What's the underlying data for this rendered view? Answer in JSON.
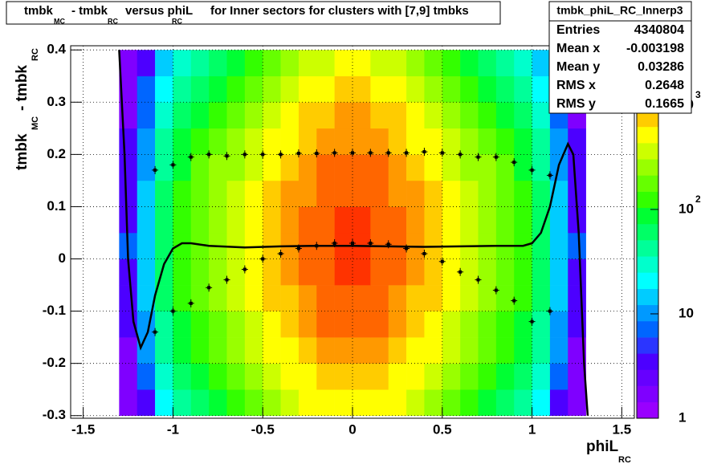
{
  "chart_data": {
    "type": "heatmap",
    "title": [
      "tmbk",
      "MC",
      "- tmbk",
      "RC",
      "versus phiL",
      "RC",
      "for Inner sectors for clusters with [7,9] tmbks"
    ],
    "x_label": [
      "phiL",
      "RC"
    ],
    "y_label": [
      "tmbk",
      "MC",
      "- tmbk",
      "RC"
    ],
    "xlim": [
      -1.57,
      1.57
    ],
    "ylim": [
      -0.305,
      0.408
    ],
    "xticks": [
      -1.5,
      -1,
      -0.5,
      0,
      0.5,
      1,
      1.5
    ],
    "yticks": [
      -0.3,
      -0.2,
      -0.1,
      0,
      0.1,
      0.2,
      0.3,
      0.4
    ],
    "grid": true,
    "zlog": true,
    "zlim": [
      1,
      3700
    ],
    "zticks": [
      {
        "value": 1,
        "label": "1"
      },
      {
        "value": 10,
        "label": "10"
      },
      {
        "value": 100,
        "label": "10",
        "exponent": "2"
      },
      {
        "value": 1000,
        "label": "10",
        "exponent": "3"
      }
    ],
    "palette": [
      "#9900ff",
      "#7f00ff",
      "#6600ff",
      "#4c00ff",
      "#2b35ff",
      "#0066ff",
      "#0099ff",
      "#00ccff",
      "#00ffff",
      "#00ffcc",
      "#00ff99",
      "#00ff66",
      "#00ff33",
      "#33ff00",
      "#66ff00",
      "#99ff00",
      "#ccff00",
      "#ffff00",
      "#ffcc00",
      "#ff9900",
      "#ff6600",
      "#ff3300",
      "#ff0000"
    ],
    "xbins": [
      -1.3,
      -1.2,
      -1.1,
      -1.0,
      -0.9,
      -0.8,
      -0.7,
      -0.6,
      -0.5,
      -0.4,
      -0.3,
      -0.2,
      -0.1,
      0,
      0.1,
      0.2,
      0.3,
      0.4,
      0.5,
      0.6,
      0.7,
      0.8,
      0.9,
      1.0,
      1.1,
      1.2,
      1.3
    ],
    "ybins": [
      -0.3,
      -0.25,
      -0.2,
      -0.15,
      -0.1,
      -0.05,
      0,
      0.05,
      0.1,
      0.15,
      0.2,
      0.25,
      0.3,
      0.35,
      0.4
    ],
    "z": [
      [
        2,
        4,
        20,
        38,
        62,
        88,
        124,
        174,
        246,
        310,
        438,
        550,
        618,
        618,
        550,
        438,
        310,
        246,
        174,
        124,
        88,
        62,
        38,
        20,
        4,
        2
      ],
      [
        2,
        6,
        28,
        56,
        88,
        124,
        174,
        246,
        348,
        438,
        618,
        778,
        874,
        874,
        778,
        618,
        438,
        348,
        246,
        174,
        124,
        88,
        56,
        28,
        6,
        2
      ],
      [
        2,
        10,
        38,
        74,
        118,
        166,
        234,
        332,
        468,
        590,
        834,
        1050,
        1178,
        1178,
        1050,
        834,
        590,
        468,
        332,
        234,
        166,
        118,
        74,
        38,
        10,
        2
      ],
      [
        4,
        12,
        46,
        94,
        148,
        210,
        296,
        418,
        590,
        744,
        1050,
        1322,
        1482,
        1482,
        1322,
        1050,
        744,
        590,
        418,
        296,
        210,
        148,
        94,
        46,
        12,
        4
      ],
      [
        4,
        14,
        56,
        110,
        174,
        246,
        348,
        490,
        694,
        874,
        1234,
        1552,
        1742,
        1742,
        1552,
        1234,
        874,
        694,
        490,
        348,
        246,
        174,
        110,
        56,
        14,
        4
      ],
      [
        4,
        16,
        60,
        120,
        190,
        270,
        382,
        538,
        760,
        958,
        1352,
        1702,
        1910,
        1910,
        1702,
        1352,
        958,
        760,
        538,
        382,
        270,
        190,
        120,
        60,
        16,
        4
      ],
      [
        6,
        16,
        64,
        126,
        200,
        282,
        400,
        564,
        796,
        1002,
        1416,
        1782,
        2000,
        2000,
        1782,
        1416,
        1002,
        796,
        564,
        400,
        282,
        200,
        126,
        64,
        16,
        6
      ],
      [
        4,
        16,
        62,
        124,
        196,
        276,
        390,
        550,
        778,
        980,
        1384,
        1742,
        1954,
        1954,
        1742,
        1384,
        980,
        778,
        550,
        390,
        276,
        196,
        124,
        62,
        16,
        4
      ],
      [
        4,
        14,
        56,
        112,
        178,
        252,
        356,
        502,
        710,
        894,
        1262,
        1588,
        1782,
        1782,
        1588,
        1262,
        894,
        710,
        502,
        356,
        252,
        178,
        112,
        56,
        14,
        4
      ],
      [
        4,
        12,
        48,
        96,
        152,
        214,
        302,
        428,
        604,
        760,
        1074,
        1352,
        1518,
        1518,
        1352,
        1074,
        760,
        604,
        428,
        302,
        214,
        152,
        96,
        48,
        12,
        4
      ],
      [
        4,
        10,
        38,
        78,
        124,
        174,
        246,
        348,
        490,
        618,
        874,
        1100,
        1234,
        1234,
        1100,
        874,
        618,
        490,
        348,
        246,
        174,
        124,
        78,
        38,
        10,
        4
      ],
      [
        2,
        8,
        30,
        60,
        94,
        132,
        186,
        264,
        372,
        468,
        662,
        834,
        936,
        936,
        834,
        662,
        468,
        372,
        264,
        186,
        132,
        94,
        60,
        30,
        8,
        2
      ],
      [
        2,
        6,
        20,
        42,
        66,
        94,
        132,
        186,
        264,
        332,
        468,
        590,
        662,
        662,
        590,
        468,
        332,
        264,
        186,
        132,
        94,
        66,
        42,
        20,
        6,
        2
      ],
      [
        2,
        4,
        14,
        28,
        44,
        64,
        90,
        126,
        178,
        224,
        316,
        400,
        448,
        448,
        400,
        316,
        224,
        178,
        126,
        90,
        64,
        44,
        28,
        14,
        4,
        2
      ]
    ],
    "profile_upper": {
      "x": [
        -1.1,
        -1.0,
        -0.9,
        -0.8,
        -0.7,
        -0.6,
        -0.5,
        -0.4,
        -0.3,
        -0.2,
        -0.1,
        0,
        0.1,
        0.2,
        0.3,
        0.4,
        0.5,
        0.6,
        0.7,
        0.8,
        0.9,
        1.0,
        1.1
      ],
      "y": [
        0.17,
        0.18,
        0.195,
        0.2,
        0.197,
        0.2,
        0.2,
        0.2,
        0.202,
        0.202,
        0.203,
        0.203,
        0.203,
        0.203,
        0.203,
        0.205,
        0.203,
        0.2,
        0.195,
        0.195,
        0.185,
        0.17,
        0.16
      ]
    },
    "profile_lower": {
      "x": [
        -1.1,
        -1.0,
        -0.9,
        -0.8,
        -0.7,
        -0.6,
        -0.5,
        -0.4,
        -0.3,
        -0.2,
        -0.1,
        0,
        0.1,
        0.2,
        0.3,
        0.4,
        0.5,
        0.6,
        0.7,
        0.8,
        0.9,
        1.0,
        1.1
      ],
      "y": [
        -0.14,
        -0.1,
        -0.085,
        -0.055,
        -0.04,
        -0.02,
        0,
        0.01,
        0.02,
        0.025,
        0.03,
        0.03,
        0.03,
        0.028,
        0.02,
        0.01,
        -0.005,
        -0.025,
        -0.04,
        -0.06,
        -0.08,
        -0.12,
        -0.1
      ]
    },
    "fit": {
      "x": [
        -1.3,
        -1.27,
        -1.25,
        -1.22,
        -1.18,
        -1.14,
        -1.1,
        -1.05,
        -1.0,
        -0.95,
        -0.9,
        -0.8,
        -0.6,
        -0.4,
        -0.2,
        0,
        0.2,
        0.4,
        0.6,
        0.8,
        0.95,
        1.0,
        1.05,
        1.1,
        1.15,
        1.2,
        1.23,
        1.26,
        1.29,
        1.31
      ],
      "y": [
        0.4,
        0.2,
        0.0,
        -0.12,
        -0.17,
        -0.14,
        -0.07,
        -0.01,
        0.02,
        0.03,
        0.03,
        0.025,
        0.022,
        0.024,
        0.025,
        0.025,
        0.024,
        0.023,
        0.024,
        0.025,
        0.025,
        0.03,
        0.05,
        0.1,
        0.18,
        0.22,
        0.2,
        0.05,
        -0.2,
        -0.3
      ]
    },
    "stats": {
      "name": "tmbk_phiL_RC_Innerp3",
      "rows": [
        {
          "label": "Entries",
          "value": 4340804
        },
        {
          "label": "Mean x",
          "value": -0.003198
        },
        {
          "label": "Mean y",
          "value": 0.03286
        },
        {
          "label": "RMS x",
          "value": 0.2648
        },
        {
          "label": "RMS y",
          "value": 0.1665
        }
      ]
    }
  }
}
